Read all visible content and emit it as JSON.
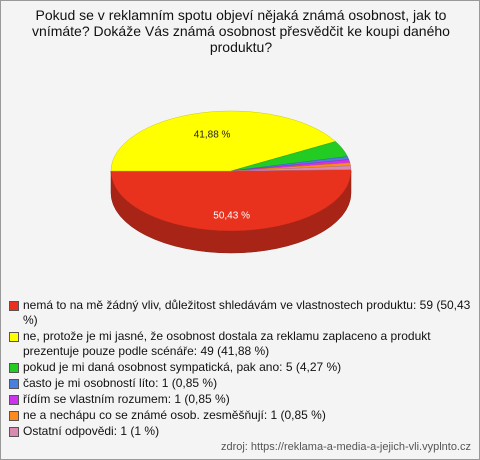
{
  "chart_data": {
    "type": "pie",
    "title": "Pokud se v reklamním spotu objeví nějaká známá osobnost, jak to vnímáte? Dokáže Vás známá osobnost přesvědčit ke koupi daného produktu?",
    "categories": [
      "nemá to na mě žádný vliv, důležitost shledávám ve vlastnostech produktu: 59 (50,43 %)",
      "ne, protože je mi jasné, že osobnost dostala za reklamu zaplaceno a produkt prezentuje pouze podle scénáře: 49 (41,88 %)",
      "pokud je mi daná osobnost sympatická, pak ano: 5 (4,27 %)",
      "často je mi osobností líto: 1 (0,85 %)",
      "řídím se vlastním rozumem: 1 (0,85 %)",
      "ne a nechápu co se známé osob. zesměšňují: 1 (0,85 %)",
      "Ostatní odpovědi: 1 (1 %)"
    ],
    "values": [
      50.43,
      41.88,
      4.27,
      0.85,
      0.85,
      0.85,
      1
    ],
    "value_labels": [
      "50,43 %",
      "41,88 %",
      null,
      null,
      null,
      null,
      null
    ],
    "colors": [
      "#e8321e",
      "#ffff00",
      "#22cc22",
      "#4a7fdc",
      "#cc33ee",
      "#ff8a1c",
      "#d98ab0"
    ],
    "source": "zdroj: https://reklama-a-media-a-jejich-vli.vyplnto.cz"
  }
}
